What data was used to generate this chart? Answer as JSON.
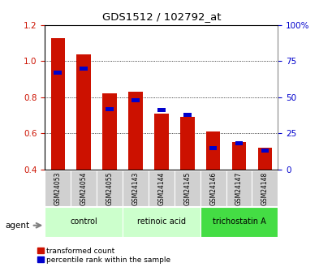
{
  "title": "GDS1512 / 102792_at",
  "samples": [
    "GSM24053",
    "GSM24054",
    "GSM24055",
    "GSM24143",
    "GSM24144",
    "GSM24145",
    "GSM24146",
    "GSM24147",
    "GSM24148"
  ],
  "transformed_count": [
    1.13,
    1.04,
    0.82,
    0.83,
    0.71,
    0.69,
    0.61,
    0.55,
    0.52
  ],
  "percentile_rank": [
    67,
    70,
    42,
    48,
    41,
    38,
    15,
    18,
    13
  ],
  "ylim_left": [
    0.4,
    1.2
  ],
  "ylim_right": [
    0,
    100
  ],
  "yticks_left": [
    0.4,
    0.6,
    0.8,
    1.0,
    1.2
  ],
  "yticks_right": [
    0,
    25,
    50,
    75,
    100
  ],
  "ytick_labels_right": [
    "0",
    "25",
    "50",
    "75",
    "100%"
  ],
  "bar_color_red": "#cc1100",
  "bar_color_blue": "#0000cc",
  "bar_bottom": 0.4,
  "bar_width": 0.55,
  "ylabel_left_color": "#cc1100",
  "ylabel_right_color": "#0000cc",
  "agent_label": "agent",
  "legend_red": "transformed count",
  "legend_blue": "percentile rank within the sample",
  "group_spans": [
    [
      0,
      2,
      "control",
      "#ccffcc"
    ],
    [
      3,
      5,
      "retinoic acid",
      "#ccffcc"
    ],
    [
      6,
      8,
      "trichostatin A",
      "#44dd44"
    ]
  ],
  "sample_box_color": "#d0d0d0"
}
